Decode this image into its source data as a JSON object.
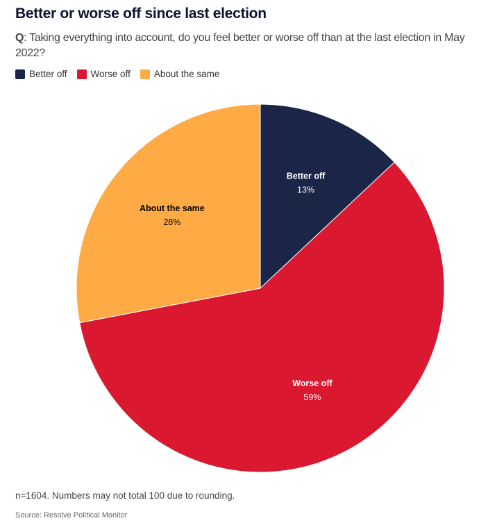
{
  "title": "Better or worse off since last election",
  "question_prefix": "Q",
  "question": ": Taking everything into account, do you feel better or worse off than at the last election in May 2022?",
  "note": "n=1604. Numbers may not total 100 due to rounding.",
  "source": "Source: Resolve Political Monitor",
  "chart_data": {
    "type": "pie",
    "title": "Better or worse off since last election",
    "legend_position": "top-left",
    "slices": [
      {
        "label": "Better off",
        "value": 13,
        "display": "13%",
        "color": "#1a2548",
        "text_color": "#ffffff"
      },
      {
        "label": "Worse off",
        "value": 59,
        "display": "59%",
        "color": "#da1830",
        "text_color": "#ffffff"
      },
      {
        "label": "About the same",
        "value": 28,
        "display": "28%",
        "color": "#ffab45",
        "text_color": "#000000"
      }
    ]
  }
}
